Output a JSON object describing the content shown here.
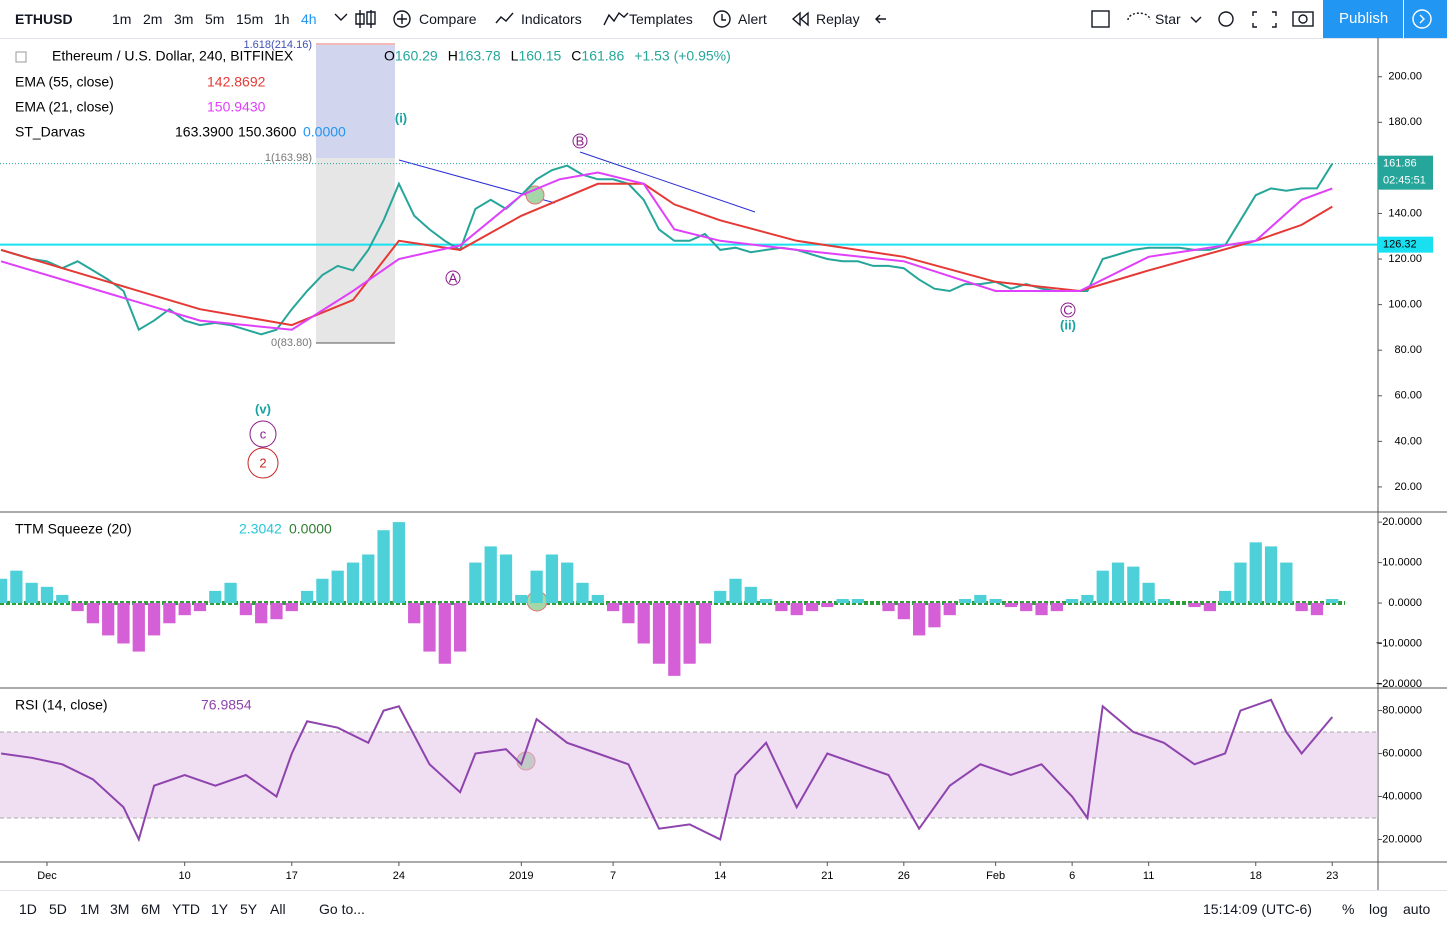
{
  "toolbar": {
    "symbol": "ETHUSD",
    "intervals": [
      "1m",
      "2m",
      "3m",
      "5m",
      "15m",
      "1h",
      "4h"
    ],
    "buttons": [
      "Compare",
      "Indicators",
      "Templates",
      "Alert",
      "Replay"
    ],
    "star": "Star",
    "publish": "Publish"
  },
  "legend": {
    "title": "Ethereum / U.S. Dollar, 240, BITFINEX",
    "ohlc": [
      {
        "label": "O",
        "value": "160.29"
      },
      {
        "label": "H",
        "value": "163.78"
      },
      {
        "label": "L",
        "value": "160.15"
      },
      {
        "label": "C",
        "value": "161.86"
      }
    ],
    "change": "+1.53 (+0.95%)",
    "indicators": [
      {
        "name": "EMA (55, close)",
        "values": [
          "142.8692"
        ]
      },
      {
        "name": "EMA (21, close)",
        "values": [
          "150.9430"
        ]
      },
      {
        "name": "ST_Darvas",
        "values": [
          "163.3900",
          "150.3600",
          "0.0000"
        ]
      }
    ]
  },
  "annotations": [
    "(i)",
    "(ii)",
    "(v)",
    "c",
    "2",
    "A",
    "B",
    "C"
  ],
  "fib": [
    "1.618(214.16)",
    "1(163.98)",
    "0(83.80)"
  ],
  "chart_data": [
    {
      "type": "line",
      "xlim": [
        -2.07,
        87.99
      ],
      "ylim": [
        9,
        217
      ],
      "yticks": [
        {
          "value": 200,
          "label": "200.00"
        },
        {
          "value": 180,
          "label": "180.00"
        },
        {
          "value": 160,
          "label": "160.00"
        },
        {
          "value": 140,
          "label": "140.00"
        },
        {
          "value": 120,
          "label": "120.00"
        },
        {
          "value": 100,
          "label": "100.00"
        },
        {
          "value": 80,
          "label": "80.00"
        },
        {
          "value": 60,
          "label": "60.00"
        },
        {
          "value": 40,
          "label": "40.00"
        },
        {
          "value": 20,
          "label": "20.00"
        }
      ],
      "last_price": 161.86,
      "countdown": "02:45:51",
      "hline": 126.32,
      "series": [
        {
          "name": "ETHUSD",
          "color": "#26a69a",
          "x": [
            -2,
            -1,
            0,
            1,
            2,
            3,
            4,
            5,
            6,
            7,
            8,
            9,
            10,
            11,
            12,
            13,
            14,
            15,
            16,
            17,
            18,
            19,
            20,
            21,
            22,
            23,
            24,
            25,
            26,
            27,
            28,
            29,
            30,
            31,
            32,
            33,
            34,
            35,
            36,
            37,
            38,
            39,
            40,
            41,
            42,
            43,
            44,
            45,
            46,
            47,
            48,
            49,
            50,
            51,
            52,
            53,
            54,
            55,
            56,
            57,
            58,
            59,
            60,
            61,
            62,
            63,
            64,
            65,
            66,
            67,
            68,
            69,
            70,
            71,
            72,
            73,
            74,
            75,
            76,
            77,
            78,
            79,
            80,
            81,
            82,
            83,
            84,
            85
          ],
          "values": [
            124,
            122,
            120,
            119,
            116,
            119,
            115,
            111,
            106,
            89,
            93,
            98,
            93,
            91,
            92,
            91,
            89,
            87,
            89,
            98,
            106,
            113,
            117,
            115,
            124,
            137,
            153,
            139,
            133,
            128,
            124,
            142,
            146,
            142,
            148,
            155,
            159,
            161,
            157,
            155,
            155,
            153,
            146,
            133,
            128,
            128,
            131,
            124,
            125,
            123,
            124,
            125,
            124,
            122,
            120,
            119,
            119,
            117,
            117,
            116,
            111,
            107,
            106,
            109,
            109,
            110,
            107,
            109,
            107,
            106,
            106,
            106,
            120,
            122,
            124,
            125,
            125,
            125,
            124,
            124,
            126,
            137,
            148,
            151,
            150,
            151,
            151,
            161.86
          ]
        },
        {
          "name": "EMA (55, close)",
          "color": "#e53935",
          "x": [
            -2,
            4.5,
            11,
            17,
            21,
            24,
            28,
            32,
            34.5,
            37,
            40,
            42,
            45,
            50,
            57,
            63,
            68.5,
            73,
            80,
            83,
            85
          ],
          "values": [
            124,
            111,
            98,
            91,
            102,
            128,
            124,
            139,
            146,
            153,
            153,
            144,
            137,
            128,
            121,
            110,
            106,
            115,
            128,
            135,
            143
          ]
        },
        {
          "name": "EMA (21, close)",
          "color": "#e040fb",
          "x": [
            -2,
            4.5,
            11,
            17,
            21,
            24,
            28,
            32,
            34.5,
            37,
            40,
            42,
            45,
            50,
            57,
            63,
            68.5,
            73,
            80,
            83,
            85
          ],
          "values": [
            119,
            106,
            93,
            89,
            106,
            120,
            126,
            148,
            155,
            158,
            153,
            133,
            128,
            124,
            119,
            106,
            106,
            121,
            128,
            146,
            151
          ]
        }
      ]
    },
    {
      "type": "bar",
      "title": "TTM Squeeze (20)",
      "readout": [
        "2.3042",
        "0.0000"
      ],
      "xlim": [
        -2.07,
        87.99
      ],
      "ylim": [
        -21,
        22.5
      ],
      "yticks": [
        {
          "value": 20,
          "label": "20.0000"
        },
        {
          "value": 10,
          "label": "10.0000"
        },
        {
          "value": 0,
          "label": "0.0000"
        },
        {
          "value": -10,
          "label": "−10.0000"
        },
        {
          "value": -20,
          "label": "−20.0000"
        }
      ],
      "series": [
        {
          "name": "TTM Squeeze (20)",
          "color": "#4dd0d8",
          "negative_color": "#d45fd6",
          "x": [
            -2,
            -1,
            0,
            1,
            2,
            3,
            4,
            5,
            6,
            7,
            8,
            9,
            10,
            11,
            12,
            13,
            14,
            15,
            16,
            17,
            18,
            19,
            20,
            21,
            22,
            23,
            24,
            25,
            26,
            27,
            28,
            29,
            30,
            31,
            32,
            33,
            34,
            35,
            36,
            37,
            38,
            39,
            40,
            41,
            42,
            43,
            44,
            45,
            46,
            47,
            48,
            49,
            50,
            51,
            52,
            53,
            54,
            55,
            56,
            57,
            58,
            59,
            60,
            61,
            62,
            63,
            64,
            65,
            66,
            67,
            68,
            69,
            70,
            71,
            72,
            73,
            74,
            75,
            76,
            77,
            78,
            79,
            80,
            81,
            82,
            83,
            84,
            85
          ],
          "values": [
            6,
            8,
            5,
            4,
            2,
            -2,
            -5,
            -8,
            -10,
            -12,
            -8,
            -5,
            -3,
            -2,
            3,
            5,
            -3,
            -5,
            -4,
            -2,
            3,
            6,
            8,
            10,
            12,
            18,
            20,
            -5,
            -12,
            -15,
            -12,
            10,
            14,
            12,
            2,
            8,
            12,
            10,
            5,
            2,
            -2,
            -5,
            -10,
            -15,
            -18,
            -15,
            -10,
            3,
            6,
            4,
            1,
            -2,
            -3,
            -2,
            -1,
            1,
            1,
            0,
            -2,
            -4,
            -8,
            -6,
            -3,
            1,
            2,
            1,
            -1,
            -2,
            -3,
            -2,
            1,
            2,
            8,
            10,
            9,
            5,
            1,
            0,
            -1,
            -2,
            3,
            10,
            15,
            14,
            10,
            -2,
            -3,
            1
          ]
        }
      ]
    },
    {
      "type": "line",
      "title": "RSI (14, close)",
      "readout": [
        "76.9854"
      ],
      "xlim": [
        -2.07,
        87.99
      ],
      "ylim": [
        9.5,
        90.5
      ],
      "band": [
        30,
        70
      ],
      "yticks": [
        {
          "value": 80,
          "label": "80.0000"
        },
        {
          "value": 60,
          "label": "60.0000"
        },
        {
          "value": 40,
          "label": "40.0000"
        },
        {
          "value": 20,
          "label": "20.0000"
        }
      ],
      "xticks": [
        {
          "value": 1,
          "label": "Dec"
        },
        10,
        17,
        24,
        {
          "value": 32,
          "label": "2019"
        },
        {
          "value": 38,
          "label": "7"
        },
        {
          "value": 45,
          "label": "14"
        },
        {
          "value": 52,
          "label": "21"
        },
        {
          "value": 57,
          "label": "26"
        },
        {
          "value": 63,
          "label": "Feb"
        },
        {
          "value": 68,
          "label": "6"
        },
        {
          "value": 73,
          "label": "11"
        },
        {
          "value": 80,
          "label": "18"
        },
        {
          "value": 85,
          "label": "23"
        }
      ],
      "series": [
        {
          "name": "RSI (14, close)",
          "color": "#8e44ad",
          "x": [
            -2,
            0,
            2,
            4,
            6,
            7,
            8,
            10,
            12,
            14,
            16,
            17,
            18,
            20,
            22,
            23,
            24,
            26,
            28,
            29,
            31,
            32,
            33,
            35,
            37,
            39,
            40,
            41,
            43,
            45,
            46,
            48,
            50,
            52,
            54,
            56,
            58,
            60,
            62,
            64,
            66,
            68,
            69,
            70,
            72,
            74,
            76,
            78,
            79,
            81,
            82,
            83,
            85
          ],
          "values": [
            60,
            58,
            55,
            48,
            35,
            20,
            45,
            50,
            45,
            50,
            40,
            60,
            75,
            72,
            65,
            80,
            82,
            55,
            42,
            60,
            62,
            55,
            76,
            65,
            60,
            55,
            40,
            25,
            27,
            20,
            50,
            65,
            35,
            60,
            55,
            50,
            25,
            45,
            55,
            50,
            55,
            40,
            30,
            82,
            70,
            65,
            55,
            60,
            80,
            85,
            70,
            60,
            77
          ]
        }
      ]
    }
  ],
  "bottom_bar": {
    "ranges": [
      "1D",
      "5D",
      "1M",
      "3M",
      "6M",
      "YTD",
      "1Y",
      "5Y",
      "All"
    ],
    "goto": "Go to...",
    "clock": "15:14:09 (UTC-6)",
    "scale_options": [
      "%",
      "log",
      "auto"
    ]
  }
}
